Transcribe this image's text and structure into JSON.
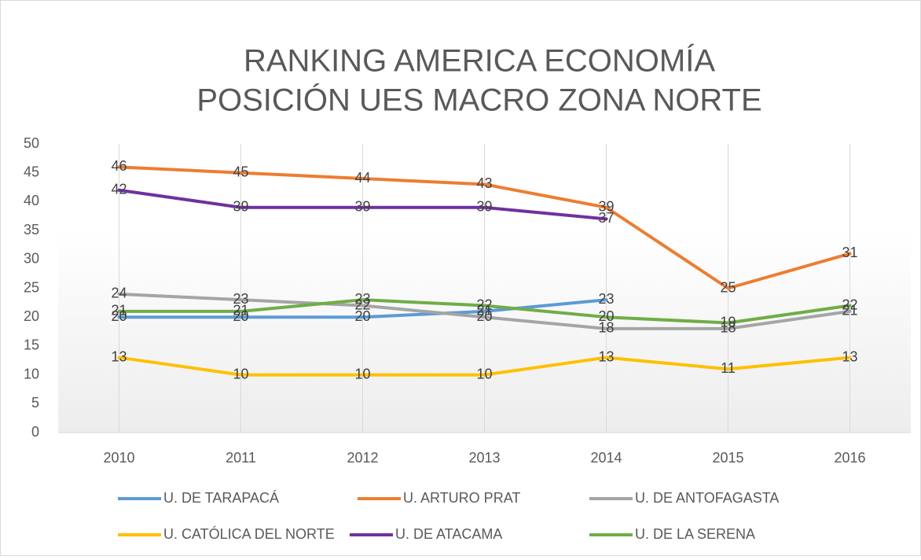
{
  "chart_data": {
    "type": "line",
    "title": [
      "RANKING AMERICA ECONOMÍA",
      "POSICIÓN UES MACRO ZONA NORTE"
    ],
    "categories": [
      "2010",
      "2011",
      "2012",
      "2013",
      "2014",
      "2015",
      "2016"
    ],
    "series": [
      {
        "name": "U. DE TARAPACÁ",
        "color": "#5b9bd5",
        "values": [
          20,
          20,
          20,
          21,
          23,
          null,
          null
        ]
      },
      {
        "name": "U. ARTURO PRAT",
        "color": "#ed7d31",
        "values": [
          46,
          45,
          44,
          43,
          39,
          25,
          31
        ]
      },
      {
        "name": "U. DE ANTOFAGASTA",
        "color": "#a5a5a5",
        "values": [
          24,
          23,
          22,
          20,
          18,
          18,
          21
        ]
      },
      {
        "name": "U. CATÓLICA DEL NORTE",
        "color": "#ffc000",
        "values": [
          13,
          10,
          10,
          10,
          13,
          11,
          13
        ]
      },
      {
        "name": "U. DE ATACAMA",
        "color": "#7030a0",
        "values": [
          42,
          39,
          39,
          39,
          37,
          null,
          null
        ]
      },
      {
        "name": "U. DE LA SERENA",
        "color": "#70ad47",
        "values": [
          21,
          21,
          23,
          22,
          20,
          19,
          22
        ]
      }
    ],
    "ylim": [
      0,
      50
    ],
    "yticks": [
      0,
      5,
      10,
      15,
      20,
      25,
      30,
      35,
      40,
      45,
      50
    ],
    "grid": "vertical",
    "legend": "bottom"
  }
}
